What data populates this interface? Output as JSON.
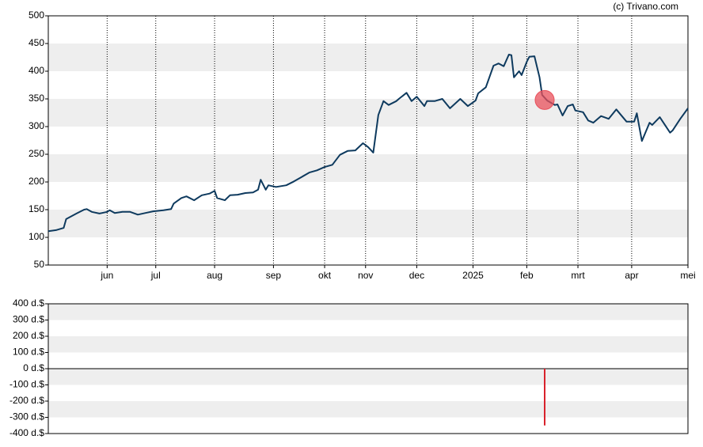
{
  "chart_data": [
    {
      "type": "line",
      "credit": "(c) Trivano.com",
      "color": "#0e3a5e",
      "x": [
        0,
        3,
        6,
        7,
        11,
        14,
        15,
        17,
        20,
        23,
        24,
        26,
        29,
        32,
        35,
        38,
        41,
        45,
        48,
        49,
        52,
        54,
        57,
        60,
        63,
        65,
        66,
        69,
        71,
        74,
        77,
        80,
        82,
        83,
        85,
        86,
        89,
        93,
        96,
        99,
        102,
        105,
        108,
        111,
        114,
        117,
        120,
        123,
        125,
        127,
        129,
        131,
        133,
        136,
        137,
        140,
        142,
        144,
        147,
        148,
        151,
        154,
        157,
        161,
        164,
        167,
        168,
        171,
        174,
        176,
        178,
        180,
        181,
        182,
        184,
        185,
        187,
        188,
        190,
        192,
        193,
        195,
        198,
        199,
        201,
        203,
        205,
        206,
        209,
        211,
        213,
        216,
        219,
        222,
        226,
        229,
        230,
        232,
        235,
        236,
        239,
        243,
        244,
        247,
        250
      ],
      "values": [
        111,
        113,
        117,
        133,
        143,
        150,
        151,
        146,
        143,
        146,
        149,
        144,
        146,
        146,
        141,
        144,
        147,
        149,
        151,
        161,
        171,
        174,
        167,
        176,
        179,
        184,
        171,
        167,
        176,
        177,
        180,
        181,
        186,
        204,
        186,
        194,
        191,
        194,
        201,
        209,
        217,
        221,
        227,
        231,
        249,
        256,
        257,
        270,
        263,
        253,
        321,
        346,
        339,
        346,
        350,
        361,
        346,
        354,
        337,
        346,
        346,
        350,
        333,
        350,
        337,
        347,
        360,
        371,
        410,
        414,
        409,
        430,
        429,
        389,
        400,
        393,
        417,
        426,
        427,
        389,
        357,
        347,
        339,
        340,
        320,
        337,
        340,
        329,
        326,
        311,
        307,
        319,
        314,
        331,
        309,
        309,
        324,
        274,
        307,
        303,
        317,
        289,
        293,
        314,
        333
      ],
      "xlim": [
        0,
        250
      ],
      "xticks": [
        {
          "value": 23,
          "label": "jun"
        },
        {
          "value": 42,
          "label": "jul"
        },
        {
          "value": 65,
          "label": "aug"
        },
        {
          "value": 88,
          "label": "sep"
        },
        {
          "value": 108,
          "label": "okt"
        },
        {
          "value": 124,
          "label": "nov"
        },
        {
          "value": 144,
          "label": "dec"
        },
        {
          "value": 166,
          "label": "2025"
        },
        {
          "value": 187,
          "label": "feb"
        },
        {
          "value": 207,
          "label": "mrt"
        },
        {
          "value": 228,
          "label": "apr"
        },
        {
          "value": 250,
          "label": "mei"
        }
      ],
      "ylim": [
        50,
        500
      ],
      "yticks": [
        50,
        100,
        150,
        200,
        250,
        300,
        350,
        400,
        450,
        500
      ],
      "vgrid": true,
      "markers": [
        {
          "x": 194,
          "y": 348,
          "color": "#e8505b"
        }
      ]
    },
    {
      "type": "bar",
      "color": "#d9212b",
      "x": [
        194
      ],
      "values": [
        -350
      ],
      "xlim": [
        0,
        250
      ],
      "ylim": [
        -400,
        400
      ],
      "yticks": [
        {
          "value": -400,
          "label": "-400 d.$"
        },
        {
          "value": -300,
          "label": "-300 d.$"
        },
        {
          "value": -200,
          "label": "-200 d.$"
        },
        {
          "value": -100,
          "label": "-100 d.$"
        },
        {
          "value": 0,
          "label": "0 d.$"
        },
        {
          "value": 100,
          "label": "100 d.$"
        },
        {
          "value": 200,
          "label": "200 d.$"
        },
        {
          "value": 300,
          "label": "300 d.$"
        },
        {
          "value": 400,
          "label": "400 d.$"
        }
      ],
      "vgrid": false
    }
  ]
}
